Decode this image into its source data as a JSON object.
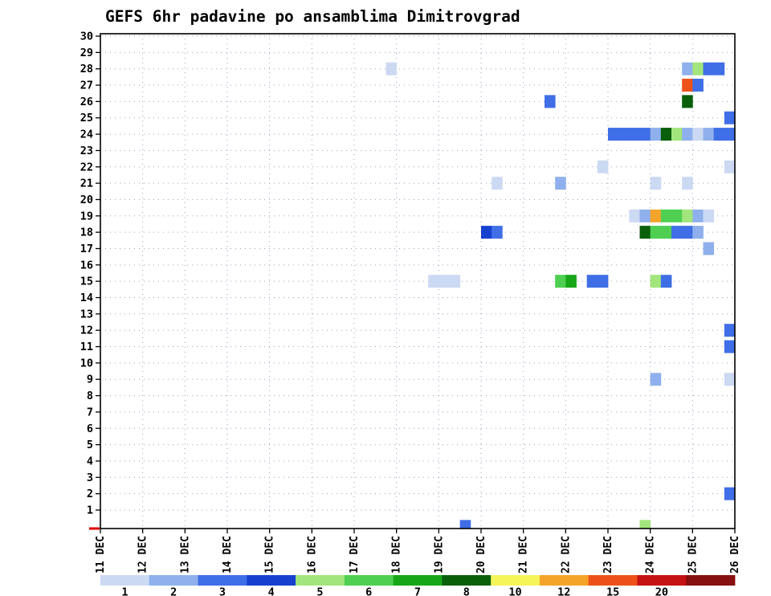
{
  "chart_data": {
    "type": "heatmap",
    "title": "GEFS 6hr padavine po ansamblima Dimitrovgrad",
    "x": {
      "labels": [
        "11 DEC",
        "12 DEC",
        "13 DEC",
        "14 DEC",
        "15 DEC",
        "16 DEC",
        "17 DEC",
        "18 DEC",
        "19 DEC",
        "20 DEC",
        "21 DEC",
        "22 DEC",
        "23 DEC",
        "24 DEC",
        "25 DEC",
        "26 DEC"
      ],
      "steps_per_day": 4,
      "total_steps": 60
    },
    "y": {
      "min_member": 1,
      "max_member": 30
    },
    "legend": {
      "labels": [
        "1",
        "2",
        "3",
        "4",
        "5",
        "6",
        "7",
        "8",
        "10",
        "12",
        "15",
        "20"
      ],
      "thresholds": [
        1,
        2,
        3,
        4,
        5,
        6,
        7,
        8,
        10,
        12,
        15,
        20
      ],
      "colors": [
        "#ccd9f3",
        "#8fb0ec",
        "#3f6ee6",
        "#1641cf",
        "#a2e57c",
        "#4ecf52",
        "#17a617",
        "#0a5f0a",
        "#f5f55a",
        "#f5a42a",
        "#ec521a",
        "#c51212",
        "#871010"
      ]
    },
    "grid": {
      "color": "#94a2be",
      "style": "dotted"
    },
    "origin_marker_color": "#e00000",
    "cell_format": [
      "member",
      "time_step_6hr_from_11DEC00",
      "precip_mm_estimated_from_color"
    ],
    "cells": [
      [
        28,
        27,
        1
      ],
      [
        28,
        55,
        2
      ],
      [
        28,
        56,
        5
      ],
      [
        28,
        57,
        3
      ],
      [
        28,
        58,
        3
      ],
      [
        27,
        55,
        13
      ],
      [
        27,
        56,
        3
      ],
      [
        26,
        42,
        3
      ],
      [
        26,
        55,
        8
      ],
      [
        25,
        59,
        3
      ],
      [
        24,
        48,
        3
      ],
      [
        24,
        49,
        3
      ],
      [
        24,
        50,
        3
      ],
      [
        24,
        51,
        3
      ],
      [
        24,
        52,
        2
      ],
      [
        24,
        53,
        8
      ],
      [
        24,
        54,
        5
      ],
      [
        24,
        55,
        2
      ],
      [
        24,
        56,
        1
      ],
      [
        24,
        57,
        2
      ],
      [
        24,
        58,
        3
      ],
      [
        24,
        59,
        3
      ],
      [
        22,
        47,
        1
      ],
      [
        22,
        59,
        1
      ],
      [
        21,
        37,
        1
      ],
      [
        21,
        43,
        2
      ],
      [
        21,
        52,
        1
      ],
      [
        21,
        55,
        1
      ],
      [
        19,
        50,
        1
      ],
      [
        19,
        51,
        2
      ],
      [
        19,
        52,
        11
      ],
      [
        19,
        53,
        6
      ],
      [
        19,
        54,
        6
      ],
      [
        19,
        55,
        5
      ],
      [
        19,
        56,
        2
      ],
      [
        19,
        57,
        1
      ],
      [
        18,
        36,
        4
      ],
      [
        18,
        37,
        3
      ],
      [
        18,
        51,
        8
      ],
      [
        18,
        52,
        6
      ],
      [
        18,
        53,
        6
      ],
      [
        18,
        54,
        3
      ],
      [
        18,
        55,
        3
      ],
      [
        18,
        56,
        2
      ],
      [
        17,
        57,
        2
      ],
      [
        15,
        31,
        1
      ],
      [
        15,
        32,
        1
      ],
      [
        15,
        33,
        1
      ],
      [
        15,
        43,
        6
      ],
      [
        15,
        44,
        7
      ],
      [
        15,
        46,
        3
      ],
      [
        15,
        47,
        3
      ],
      [
        15,
        52,
        5
      ],
      [
        15,
        53,
        3
      ],
      [
        12,
        59,
        3
      ],
      [
        11,
        59,
        3
      ],
      [
        9,
        52,
        2
      ],
      [
        9,
        59,
        1
      ],
      [
        2,
        59,
        3
      ],
      [
        0,
        34,
        3
      ],
      [
        0,
        51,
        5
      ]
    ]
  }
}
